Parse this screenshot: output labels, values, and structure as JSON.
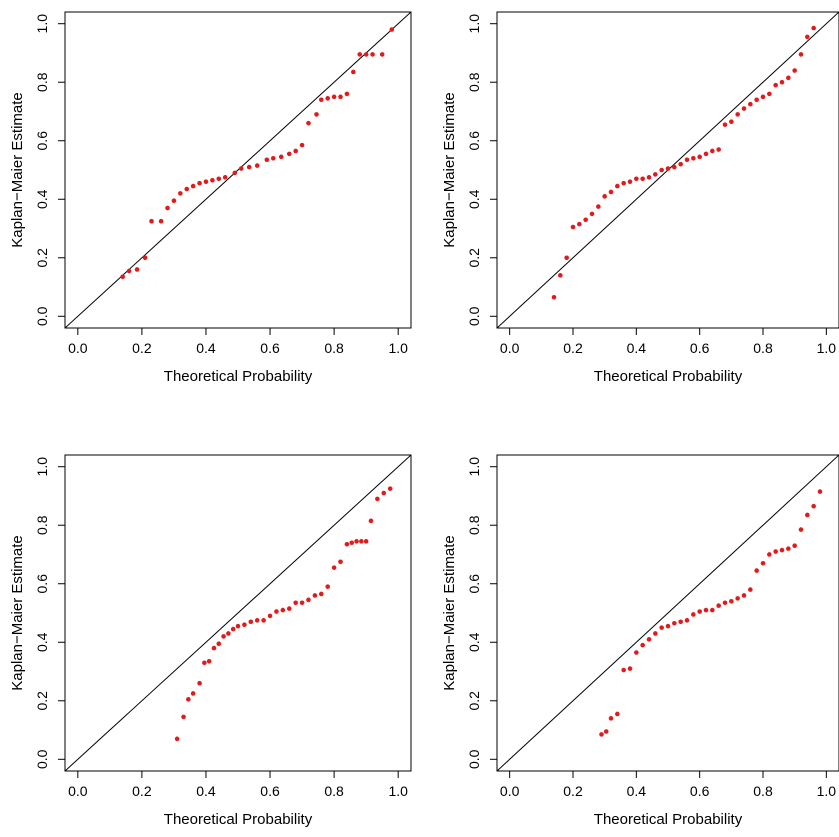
{
  "style": {
    "point_color": "#e31a1c",
    "line_color": "#000000"
  },
  "chart_data": [
    {
      "type": "scatter",
      "title": "",
      "xlabel": "Theoretical Probability",
      "ylabel": "Kaplan−Maier Estimate",
      "xlim": [
        0,
        1
      ],
      "ylim": [
        0,
        1
      ],
      "xticks": [
        "0.0",
        "0.2",
        "0.4",
        "0.6",
        "0.8",
        "1.0"
      ],
      "yticks": [
        "0.0",
        "0.2",
        "0.4",
        "0.6",
        "0.8",
        "1.0"
      ],
      "reference_line": "y = x",
      "grid": false,
      "x": [
        0.14,
        0.16,
        0.185,
        0.21,
        0.23,
        0.26,
        0.28,
        0.3,
        0.32,
        0.34,
        0.36,
        0.38,
        0.4,
        0.42,
        0.44,
        0.46,
        0.49,
        0.51,
        0.535,
        0.56,
        0.59,
        0.61,
        0.635,
        0.66,
        0.68,
        0.7,
        0.72,
        0.745,
        0.76,
        0.78,
        0.8,
        0.82,
        0.84,
        0.86,
        0.88,
        0.9,
        0.92,
        0.95,
        0.98
      ],
      "y": [
        0.135,
        0.155,
        0.16,
        0.2,
        0.325,
        0.325,
        0.37,
        0.395,
        0.42,
        0.435,
        0.445,
        0.455,
        0.46,
        0.465,
        0.47,
        0.475,
        0.49,
        0.505,
        0.51,
        0.515,
        0.535,
        0.54,
        0.545,
        0.555,
        0.565,
        0.585,
        0.66,
        0.69,
        0.74,
        0.745,
        0.75,
        0.75,
        0.76,
        0.835,
        0.895,
        0.895,
        0.895,
        0.895,
        0.98
      ]
    },
    {
      "type": "scatter",
      "title": "",
      "xlabel": "Theoretical Probability",
      "ylabel": "Kaplan−Maier Estimate",
      "xlim": [
        0,
        1
      ],
      "ylim": [
        0,
        1
      ],
      "xticks": [
        "0.0",
        "0.2",
        "0.4",
        "0.6",
        "0.8",
        "1.0"
      ],
      "yticks": [
        "0.0",
        "0.2",
        "0.4",
        "0.6",
        "0.8",
        "1.0"
      ],
      "reference_line": "y = x",
      "grid": false,
      "x": [
        0.14,
        0.16,
        0.18,
        0.2,
        0.22,
        0.24,
        0.26,
        0.28,
        0.3,
        0.32,
        0.34,
        0.36,
        0.38,
        0.4,
        0.42,
        0.44,
        0.46,
        0.48,
        0.5,
        0.52,
        0.54,
        0.56,
        0.58,
        0.6,
        0.62,
        0.64,
        0.66,
        0.68,
        0.7,
        0.72,
        0.74,
        0.76,
        0.78,
        0.8,
        0.82,
        0.84,
        0.86,
        0.88,
        0.9,
        0.92,
        0.94,
        0.96
      ],
      "y": [
        0.065,
        0.14,
        0.2,
        0.305,
        0.315,
        0.33,
        0.35,
        0.375,
        0.41,
        0.425,
        0.445,
        0.455,
        0.46,
        0.47,
        0.47,
        0.475,
        0.485,
        0.5,
        0.505,
        0.51,
        0.52,
        0.535,
        0.54,
        0.545,
        0.555,
        0.565,
        0.57,
        0.655,
        0.665,
        0.69,
        0.71,
        0.725,
        0.74,
        0.75,
        0.76,
        0.79,
        0.8,
        0.815,
        0.84,
        0.895,
        0.955,
        0.985
      ]
    },
    {
      "type": "scatter",
      "title": "",
      "xlabel": "Theoretical Probability",
      "ylabel": "Kaplan−Maier Estimate",
      "xlim": [
        0,
        1
      ],
      "ylim": [
        0,
        1
      ],
      "xticks": [
        "0.0",
        "0.2",
        "0.4",
        "0.6",
        "0.8",
        "1.0"
      ],
      "yticks": [
        "0.0",
        "0.2",
        "0.4",
        "0.6",
        "0.8",
        "1.0"
      ],
      "reference_line": "y = x",
      "grid": false,
      "x": [
        0.31,
        0.33,
        0.345,
        0.36,
        0.38,
        0.395,
        0.41,
        0.425,
        0.44,
        0.455,
        0.47,
        0.485,
        0.5,
        0.52,
        0.54,
        0.56,
        0.58,
        0.6,
        0.62,
        0.64,
        0.66,
        0.68,
        0.7,
        0.72,
        0.74,
        0.76,
        0.78,
        0.8,
        0.82,
        0.84,
        0.855,
        0.87,
        0.885,
        0.9,
        0.915,
        0.935,
        0.955,
        0.975
      ],
      "y": [
        0.07,
        0.145,
        0.205,
        0.225,
        0.26,
        0.33,
        0.335,
        0.38,
        0.395,
        0.42,
        0.43,
        0.445,
        0.455,
        0.46,
        0.47,
        0.475,
        0.475,
        0.49,
        0.505,
        0.51,
        0.515,
        0.535,
        0.535,
        0.545,
        0.56,
        0.565,
        0.59,
        0.655,
        0.675,
        0.735,
        0.74,
        0.745,
        0.745,
        0.745,
        0.815,
        0.89,
        0.91,
        0.925
      ]
    },
    {
      "type": "scatter",
      "title": "",
      "xlabel": "Theoretical Probability",
      "ylabel": "Kaplan−Maier Estimate",
      "xlim": [
        0,
        1
      ],
      "ylim": [
        0,
        1
      ],
      "xticks": [
        "0.0",
        "0.2",
        "0.4",
        "0.6",
        "0.8",
        "1.0"
      ],
      "yticks": [
        "0.0",
        "0.2",
        "0.4",
        "0.6",
        "0.8",
        "1.0"
      ],
      "reference_line": "y = x",
      "grid": false,
      "x": [
        0.29,
        0.305,
        0.32,
        0.34,
        0.36,
        0.38,
        0.4,
        0.42,
        0.44,
        0.46,
        0.48,
        0.5,
        0.52,
        0.54,
        0.56,
        0.58,
        0.6,
        0.62,
        0.64,
        0.66,
        0.68,
        0.7,
        0.72,
        0.74,
        0.76,
        0.78,
        0.8,
        0.82,
        0.84,
        0.86,
        0.88,
        0.9,
        0.92,
        0.94,
        0.96,
        0.98
      ],
      "y": [
        0.085,
        0.095,
        0.14,
        0.155,
        0.305,
        0.31,
        0.365,
        0.39,
        0.41,
        0.43,
        0.45,
        0.455,
        0.465,
        0.47,
        0.475,
        0.495,
        0.505,
        0.51,
        0.51,
        0.525,
        0.535,
        0.54,
        0.55,
        0.56,
        0.58,
        0.645,
        0.67,
        0.7,
        0.71,
        0.715,
        0.72,
        0.73,
        0.785,
        0.835,
        0.865,
        0.915
      ]
    }
  ]
}
